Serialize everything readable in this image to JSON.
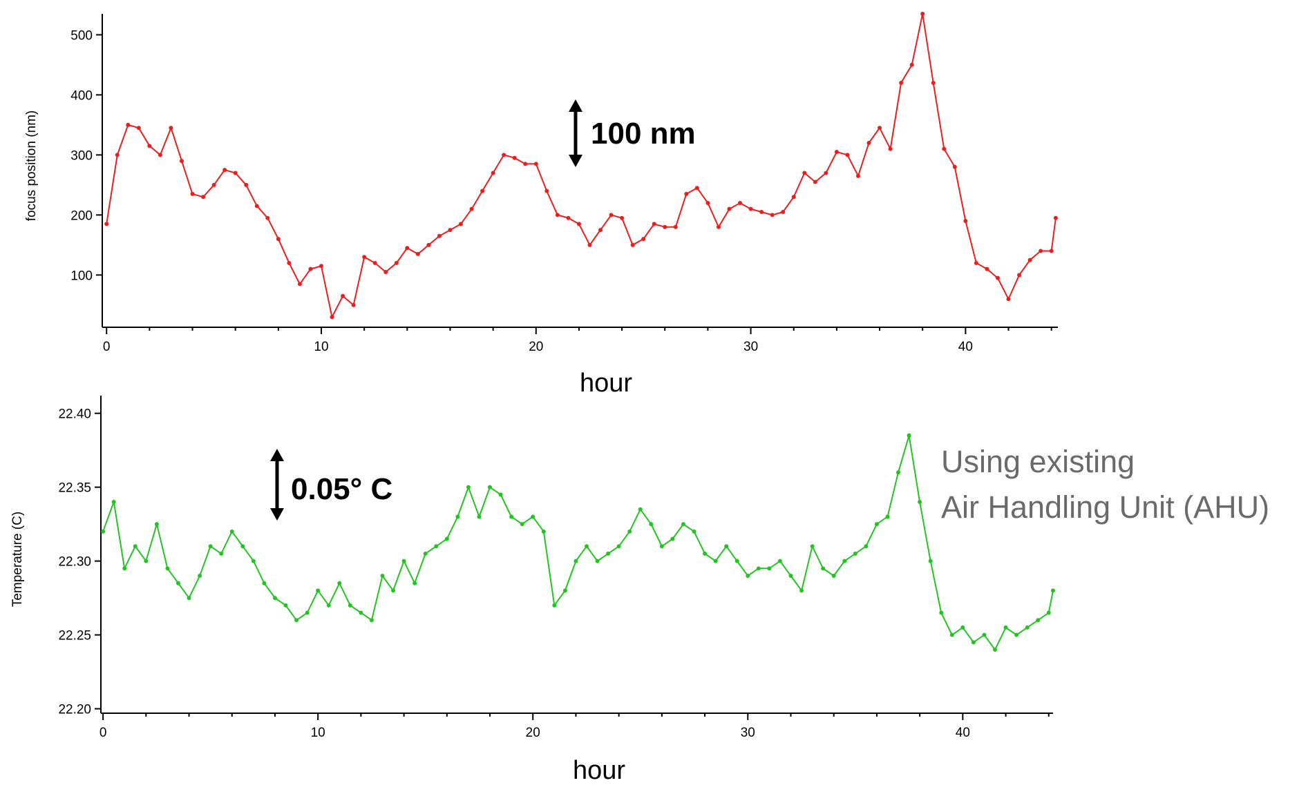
{
  "chart_data": [
    {
      "type": "line",
      "color": "#ee1c1c",
      "xlabel": "hour",
      "ylabel": "focus position (nm)",
      "xlim": [
        -0.2,
        44.3
      ],
      "ylim": [
        13,
        535
      ],
      "xticks": [
        0,
        10,
        20,
        30,
        40
      ],
      "yticks": [
        100,
        200,
        300,
        400,
        500
      ],
      "grid": false,
      "annotation": "100 nm",
      "series": [
        {
          "x": [
            0,
            0.5,
            1,
            1.5,
            2,
            2.5,
            3,
            3.5,
            4,
            4.5,
            5,
            5.5,
            6,
            6.5,
            7,
            7.5,
            8,
            8.5,
            9,
            9.5,
            10,
            10.5,
            11,
            11.5,
            12,
            12.5,
            13,
            13.5,
            14,
            14.5,
            15,
            15.5,
            16,
            16.5,
            17,
            17.5,
            18,
            18.5,
            19,
            19.5,
            20,
            20.5,
            21,
            21.5,
            22,
            22.5,
            23,
            23.5,
            24,
            24.5,
            25,
            25.5,
            26,
            26.5,
            27,
            27.5,
            28,
            28.5,
            29,
            29.5,
            30,
            30.5,
            31,
            31.5,
            32,
            32.5,
            33,
            33.5,
            34,
            34.5,
            35,
            35.5,
            36,
            36.5,
            37,
            37.5,
            38,
            38.5,
            39,
            39.5,
            40,
            40.5,
            41,
            41.5,
            42,
            42.5,
            43,
            43.5,
            44,
            44.2
          ],
          "y": [
            185,
            300,
            350,
            345,
            315,
            300,
            345,
            290,
            235,
            230,
            250,
            275,
            270,
            250,
            215,
            195,
            160,
            120,
            85,
            110,
            115,
            30,
            65,
            50,
            130,
            120,
            105,
            120,
            145,
            135,
            150,
            165,
            175,
            185,
            210,
            240,
            270,
            300,
            295,
            285,
            285,
            240,
            200,
            195,
            185,
            150,
            175,
            200,
            195,
            150,
            160,
            185,
            180,
            180,
            235,
            245,
            220,
            180,
            210,
            220,
            210,
            205,
            200,
            205,
            230,
            270,
            255,
            270,
            305,
            300,
            265,
            320,
            345,
            310,
            420,
            450,
            535,
            420,
            310,
            280,
            190,
            120,
            110,
            95,
            60,
            100,
            125,
            140,
            140,
            195
          ]
        }
      ]
    },
    {
      "type": "line",
      "color": "#22c422",
      "xlabel": "hour",
      "ylabel": "Temperature (C)",
      "xlim": [
        -0.1,
        44.2
      ],
      "ylim": [
        22.197,
        22.412
      ],
      "xticks": [
        0,
        10,
        20,
        30,
        40
      ],
      "yticks": [
        22.2,
        22.25,
        22.3,
        22.35,
        22.4
      ],
      "grid": false,
      "annotation": "0.05° C",
      "series": [
        {
          "x": [
            0,
            0.5,
            1,
            1.5,
            2,
            2.5,
            3,
            3.5,
            4,
            4.5,
            5,
            5.5,
            6,
            6.5,
            7,
            7.5,
            8,
            8.5,
            9,
            9.5,
            10,
            10.5,
            11,
            11.5,
            12,
            12.5,
            13,
            13.5,
            14,
            14.5,
            15,
            15.5,
            16,
            16.5,
            17,
            17.5,
            18,
            18.5,
            19,
            19.5,
            20,
            20.5,
            21,
            21.5,
            22,
            22.5,
            23,
            23.5,
            24,
            24.5,
            25,
            25.5,
            26,
            26.5,
            27,
            27.5,
            28,
            28.5,
            29,
            29.5,
            30,
            30.5,
            31,
            31.5,
            32,
            32.5,
            33,
            33.5,
            34,
            34.5,
            35,
            35.5,
            36,
            36.5,
            37,
            37.5,
            38,
            38.5,
            39,
            39.5,
            40,
            40.5,
            41,
            41.5,
            42,
            42.5,
            43,
            43.5,
            44,
            44.2
          ],
          "y": [
            22.32,
            22.34,
            22.295,
            22.31,
            22.3,
            22.325,
            22.295,
            22.285,
            22.275,
            22.29,
            22.31,
            22.305,
            22.32,
            22.31,
            22.3,
            22.285,
            22.275,
            22.27,
            22.26,
            22.265,
            22.28,
            22.27,
            22.285,
            22.27,
            22.265,
            22.26,
            22.29,
            22.28,
            22.3,
            22.285,
            22.305,
            22.31,
            22.315,
            22.33,
            22.35,
            22.33,
            22.35,
            22.345,
            22.33,
            22.325,
            22.33,
            22.32,
            22.27,
            22.28,
            22.3,
            22.31,
            22.3,
            22.305,
            22.31,
            22.32,
            22.335,
            22.325,
            22.31,
            22.315,
            22.325,
            22.32,
            22.305,
            22.3,
            22.31,
            22.3,
            22.29,
            22.295,
            22.295,
            22.3,
            22.29,
            22.28,
            22.31,
            22.295,
            22.29,
            22.3,
            22.305,
            22.31,
            22.325,
            22.33,
            22.36,
            22.385,
            22.34,
            22.3,
            22.265,
            22.25,
            22.255,
            22.245,
            22.25,
            22.24,
            22.255,
            22.25,
            22.255,
            22.26,
            22.265,
            22.28
          ]
        }
      ]
    }
  ],
  "notes": {
    "line1": "Using existing",
    "line2": "Air Handling Unit (AHU)"
  }
}
